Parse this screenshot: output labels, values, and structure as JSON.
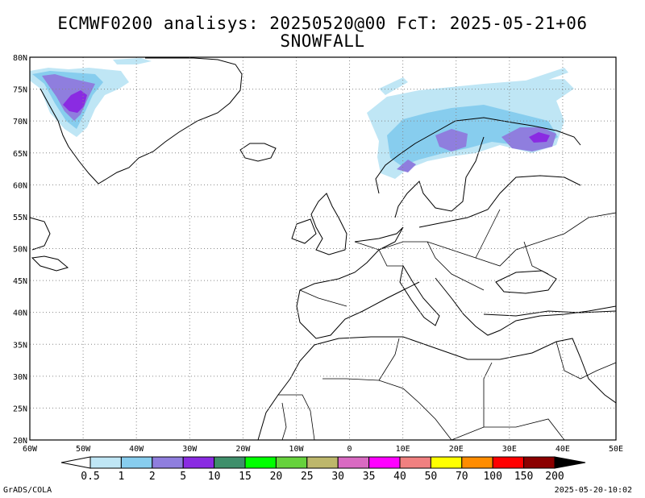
{
  "title": {
    "line1": "ECMWF0200 analisys: 20250520@00 FcT: 2025-05-21+06",
    "line2": "SNOWFALL"
  },
  "map": {
    "lat_labels": [
      "80N",
      "75N",
      "70N",
      "65N",
      "60N",
      "55N",
      "50N",
      "45N",
      "40N",
      "35N",
      "30N",
      "25N",
      "20N"
    ],
    "lon_labels": [
      "60W",
      "50W",
      "40W",
      "30W",
      "20W",
      "10W",
      "0",
      "10E",
      "20E",
      "30E",
      "40E",
      "50E"
    ],
    "lon_range": [
      -60,
      50
    ],
    "lat_range": [
      20,
      80
    ],
    "grid": true
  },
  "legend": {
    "levels": [
      "0.5",
      "1",
      "2",
      "5",
      "10",
      "15",
      "20",
      "25",
      "30",
      "35",
      "40",
      "50",
      "70",
      "100",
      "150",
      "200"
    ],
    "colors": [
      "#ffffff",
      "#bfe6f5",
      "#87cdee",
      "#8f7ede",
      "#8a2be2",
      "#3f8f6b",
      "#00ff00",
      "#66d23c",
      "#bdb76b",
      "#d96ac2",
      "#ff00ff",
      "#f08080",
      "#ffff00",
      "#ff8c00",
      "#ff0000",
      "#8b0000",
      "#000000"
    ]
  },
  "footer": {
    "left": "GrADS/COLA",
    "right": "2025-05-20-10:02"
  }
}
